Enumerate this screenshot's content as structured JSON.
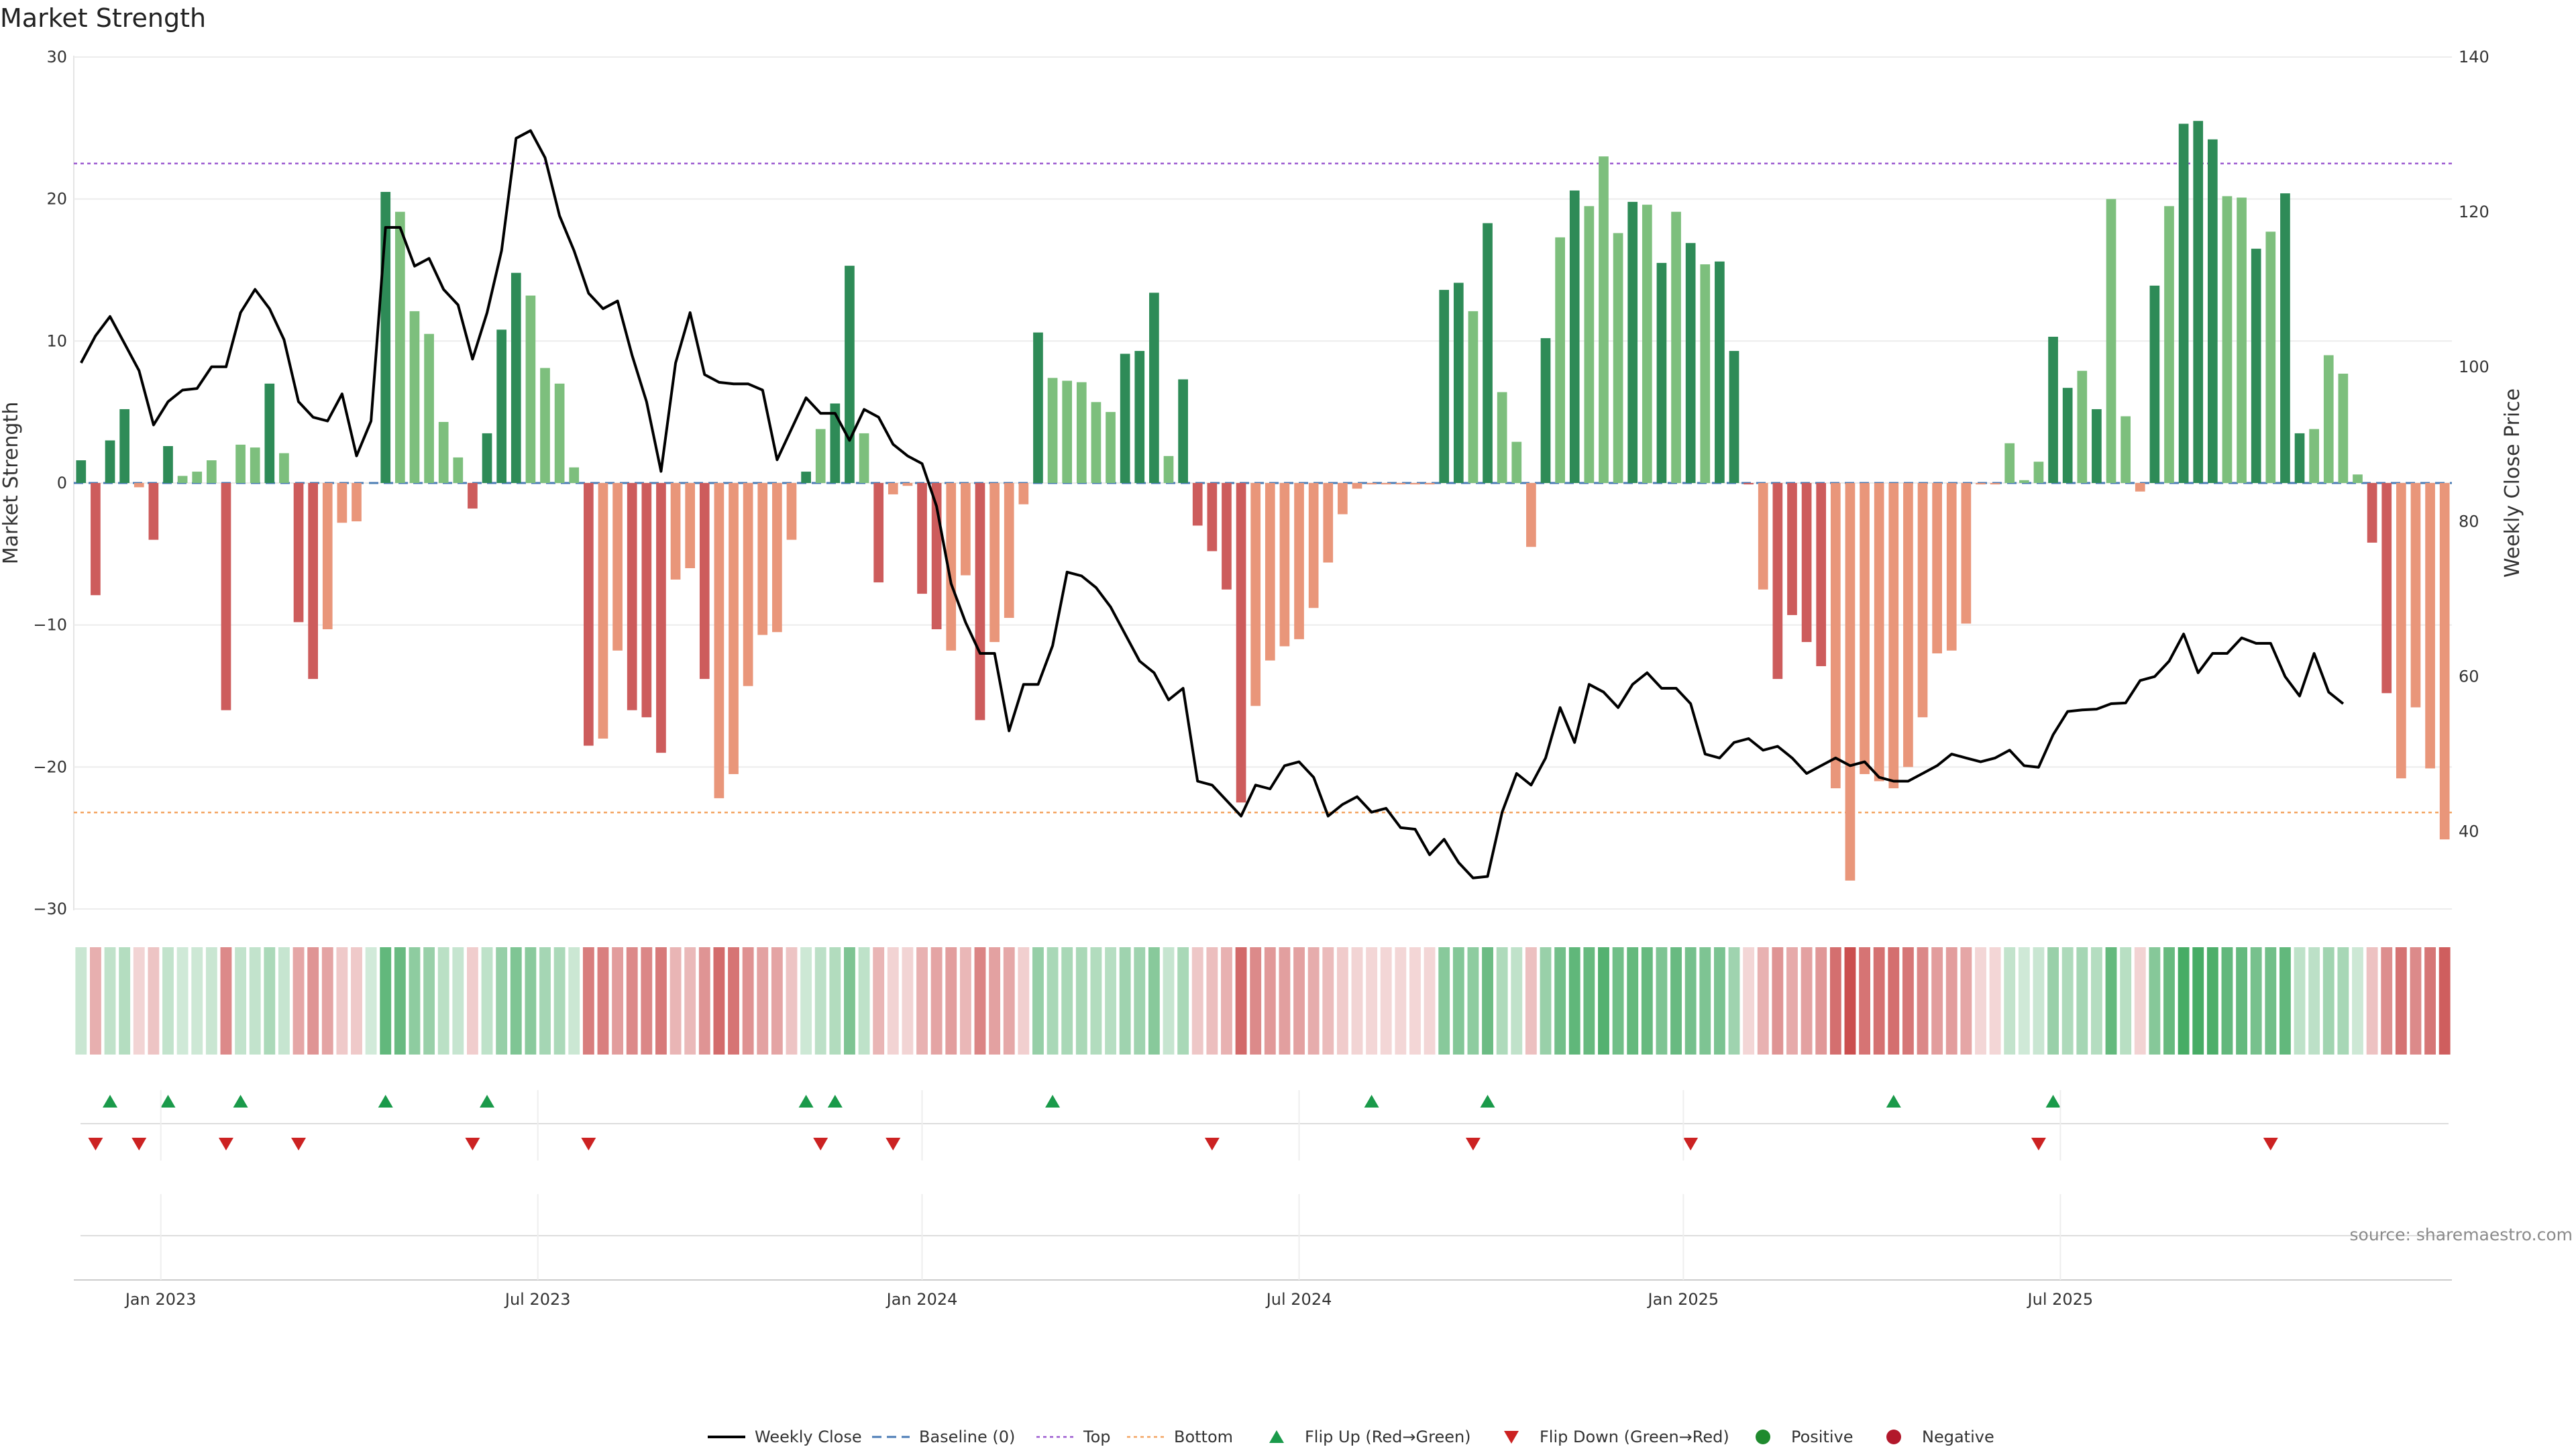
{
  "chart_data": {
    "type": "bar",
    "title": "Market Strength",
    "ylabel_left": "Market Strength",
    "ylabel_right": "Weekly Close Price",
    "ylim_left": [
      -30,
      30
    ],
    "ylim_right": [
      30,
      140
    ],
    "yticks_left": [
      30,
      20,
      10,
      0,
      -10,
      -20,
      -30
    ],
    "yticks_left_labels": [
      "30",
      "20",
      "10",
      "0",
      "−10",
      "−20",
      "−30"
    ],
    "yticks_right": [
      140,
      120,
      100,
      80,
      60,
      40
    ],
    "x_ticks": [
      "Jan 2023",
      "Jul 2023",
      "Jan 2024",
      "Jul 2024",
      "Jan 2025",
      "Jul 2025"
    ],
    "grid": true,
    "top_line": 22.5,
    "bottom_line": -23.2,
    "colors": {
      "strong_pos": "#2e8b57",
      "weak_pos": "#7dbf7d",
      "strong_neg": "#cd5c5c",
      "weak_neg": "#e9967a",
      "price": "#000000",
      "baseline": "#4a7bb5",
      "top": "#9b59d0",
      "bottom": "#f4a460",
      "flip_up": "#1a9a4a",
      "flip_down": "#cc2222"
    },
    "series": [
      {
        "name": "Weekly Close",
        "type": "line",
        "axis": "right",
        "values": [
          100.5,
          104.0,
          106.5,
          103.0,
          99.5,
          92.5,
          95.5,
          97.0,
          97.2,
          100.0,
          100.0,
          107.0,
          110.0,
          107.5,
          103.5,
          95.5,
          93.5,
          93.0,
          96.5,
          88.5,
          93.0,
          118.0,
          118.0,
          113.0,
          114.0,
          110.0,
          108.0,
          101.0,
          107.0,
          115.0,
          129.5,
          130.5,
          127.0,
          119.5,
          115.0,
          109.5,
          107.5,
          108.5,
          101.5,
          95.5,
          86.5,
          100.5,
          107.0,
          99.0,
          98.0,
          97.8,
          97.8,
          97.0,
          88.0,
          92.0,
          96.0,
          94.0,
          94.0,
          90.5,
          94.5,
          93.5,
          90.0,
          88.5,
          87.5,
          82.0,
          72.0,
          67.0,
          63.0,
          63.0,
          53.0,
          59.0,
          59.0,
          64.0,
          73.5,
          73.0,
          71.5,
          69.0,
          65.5,
          62.0,
          60.5,
          57.0,
          58.5,
          46.5,
          46.0,
          44.0,
          42.0,
          46.0,
          45.5,
          48.5,
          49.0,
          47.0,
          42.0,
          43.5,
          44.5,
          42.5,
          43.0,
          40.5,
          40.3,
          37.0,
          39.0,
          36.0,
          34.0,
          34.2,
          42.5,
          47.5,
          46.0,
          49.5,
          56.0,
          51.5,
          59.0,
          58.0,
          56.0,
          59.0,
          60.5,
          58.5,
          58.5,
          56.5,
          50.0,
          49.5,
          51.5,
          52.0,
          50.5,
          51.0,
          49.5,
          47.5,
          48.5,
          49.5,
          48.5,
          49.0,
          47.0,
          46.5,
          46.5,
          47.5,
          48.5,
          50.0,
          49.5,
          49.0,
          49.5,
          50.5,
          48.5,
          48.3,
          52.5,
          55.5,
          55.7,
          55.8,
          56.5,
          56.6,
          59.5,
          60.0,
          62.0,
          65.5,
          60.5,
          63.0,
          63.0,
          65.0,
          64.3,
          64.3,
          60.0,
          57.5,
          63.0,
          58.0,
          56.5
        ]
      },
      {
        "name": "Market Strength",
        "type": "bar",
        "axis": "left",
        "values": [
          1.6,
          -7.9,
          3.0,
          5.2,
          -0.3,
          -4.0,
          2.6,
          0.5,
          0.8,
          1.6,
          -16.0,
          2.7,
          2.5,
          7.0,
          2.1,
          -9.8,
          -13.8,
          -10.3,
          -2.8,
          -2.7,
          0.0,
          20.5,
          19.1,
          12.1,
          10.5,
          4.3,
          1.8,
          -1.8,
          3.5,
          10.8,
          14.8,
          13.2,
          8.1,
          7.0,
          1.1,
          -18.5,
          -18.0,
          -11.8,
          -16.0,
          -16.5,
          -19.0,
          -6.8,
          -6.0,
          -13.8,
          -22.2,
          -20.5,
          -14.3,
          -10.7,
          -10.5,
          -4.0,
          0.8,
          3.8,
          5.6,
          15.3,
          3.5,
          -7.0,
          -0.8,
          -0.2,
          -7.8,
          -10.3,
          -11.8,
          -6.5,
          -16.7,
          -11.2,
          -9.5,
          -1.5,
          10.6,
          7.4,
          7.2,
          7.1,
          5.7,
          5.0,
          9.1,
          9.3,
          13.4,
          1.9,
          7.3,
          -3.0,
          -4.8,
          -7.5,
          -22.5,
          -15.7,
          -12.5,
          -11.5,
          -11.0,
          -8.8,
          -5.6,
          -2.2,
          -0.4,
          -0.1,
          -0.1,
          -0.1,
          -0.1,
          -0.1,
          13.6,
          14.1,
          12.1,
          18.3,
          6.4,
          2.9,
          -4.5,
          10.2,
          17.3,
          20.6,
          19.5,
          23.0,
          17.6,
          19.8,
          19.6,
          15.5,
          19.1,
          16.9,
          15.4,
          15.6,
          9.3,
          -0.1,
          -7.5,
          -13.8,
          -9.3,
          -11.2,
          -12.9,
          -21.5,
          -28.0,
          -20.5,
          -21.0,
          -21.5,
          -20.0,
          -16.5,
          -12.0,
          -11.8,
          -9.9,
          -0.1,
          -0.1,
          2.8,
          0.2,
          1.5,
          10.3,
          6.7,
          7.9,
          5.2,
          20.0,
          4.7,
          -0.6,
          13.9,
          19.5,
          25.3,
          25.5,
          24.2,
          20.2,
          20.1,
          16.5,
          17.7,
          20.4,
          3.5,
          3.8,
          9.0,
          7.7,
          0.6,
          -4.2,
          -14.8,
          -20.8,
          -15.8,
          -20.1,
          -25.1
        ]
      }
    ],
    "flip_up_weeks": [
      2,
      6,
      11,
      21,
      28,
      50,
      52,
      67,
      89,
      97,
      125,
      136
    ],
    "flip_down_weeks": [
      1,
      4,
      10,
      15,
      27,
      35,
      51,
      56,
      78,
      96,
      111,
      135,
      151
    ],
    "strength_strip": {
      "description": "one colored tile per week: green shades for positive, red shades for negative"
    },
    "legend": [
      {
        "label": "Weekly Close",
        "marker": "line"
      },
      {
        "label": "Baseline (0)",
        "marker": "dashed"
      },
      {
        "label": "Top",
        "marker": "dotted"
      },
      {
        "label": "Bottom",
        "marker": "dotted"
      },
      {
        "label": "Flip Up (Red→Green)",
        "marker": "triangle-up"
      },
      {
        "label": "Flip Down (Green→Red)",
        "marker": "triangle-down"
      },
      {
        "label": "Positive",
        "marker": "circle"
      },
      {
        "label": "Negative",
        "marker": "circle"
      }
    ],
    "source": "source: sharemaestro.com"
  }
}
